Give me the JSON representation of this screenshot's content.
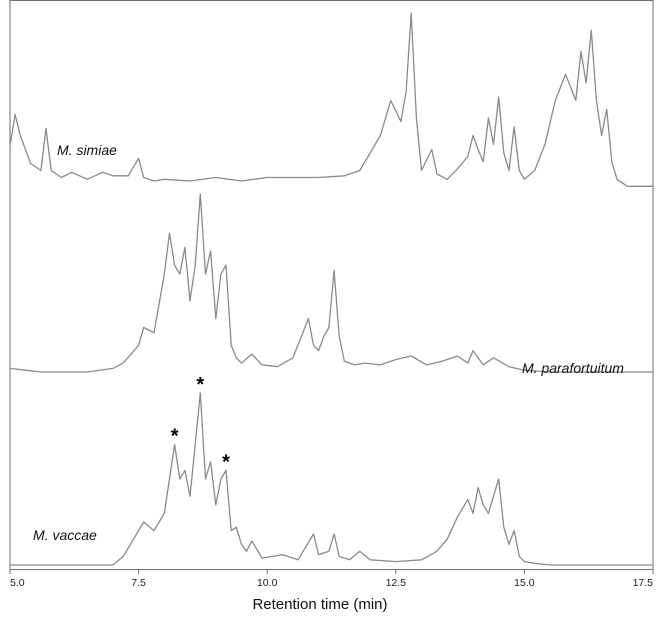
{
  "chart_data": {
    "type": "line",
    "xlabel": "Retention time (min)",
    "xlim": [
      5.0,
      17.5
    ],
    "x_ticks": [
      "5.0",
      "7.5",
      "10.0",
      "12.5",
      "15.0",
      "17.5"
    ],
    "series": [
      {
        "name": "M. simiae",
        "x": [
          5.0,
          5.1,
          5.2,
          5.4,
          5.6,
          5.7,
          5.8,
          6.0,
          6.2,
          6.5,
          6.8,
          7.0,
          7.3,
          7.5,
          7.6,
          7.8,
          8.0,
          8.5,
          9.0,
          9.5,
          10.0,
          10.5,
          11.0,
          11.5,
          11.8,
          12.0,
          12.2,
          12.4,
          12.6,
          12.7,
          12.8,
          12.9,
          13.0,
          13.2,
          13.3,
          13.5,
          13.7,
          13.9,
          14.0,
          14.1,
          14.2,
          14.3,
          14.4,
          14.5,
          14.6,
          14.7,
          14.8,
          14.9,
          15.0,
          15.2,
          15.4,
          15.6,
          15.8,
          16.0,
          16.1,
          16.2,
          16.3,
          16.4,
          16.5,
          16.6,
          16.7,
          16.8,
          17.0,
          17.5
        ],
        "y": [
          0.24,
          0.42,
          0.3,
          0.14,
          0.1,
          0.34,
          0.1,
          0.06,
          0.09,
          0.05,
          0.09,
          0.07,
          0.07,
          0.17,
          0.06,
          0.04,
          0.05,
          0.04,
          0.06,
          0.04,
          0.06,
          0.06,
          0.06,
          0.07,
          0.1,
          0.2,
          0.3,
          0.5,
          0.38,
          0.55,
          1.0,
          0.4,
          0.1,
          0.22,
          0.08,
          0.05,
          0.11,
          0.18,
          0.3,
          0.22,
          0.15,
          0.4,
          0.25,
          0.52,
          0.2,
          0.1,
          0.35,
          0.1,
          0.05,
          0.1,
          0.25,
          0.5,
          0.65,
          0.5,
          0.78,
          0.6,
          0.9,
          0.5,
          0.3,
          0.45,
          0.15,
          0.05,
          0.01,
          0.01
        ]
      },
      {
        "name": "M. parafortuitum",
        "x": [
          5.0,
          5.3,
          5.6,
          6.0,
          6.5,
          7.0,
          7.2,
          7.5,
          7.6,
          7.8,
          8.0,
          8.1,
          8.2,
          8.3,
          8.4,
          8.5,
          8.6,
          8.7,
          8.8,
          8.9,
          9.0,
          9.1,
          9.2,
          9.3,
          9.4,
          9.5,
          9.7,
          9.9,
          10.2,
          10.5,
          10.8,
          10.9,
          11.0,
          11.1,
          11.2,
          11.3,
          11.4,
          11.5,
          11.7,
          11.9,
          12.2,
          12.5,
          12.8,
          13.1,
          13.4,
          13.7,
          13.9,
          14.0,
          14.2,
          14.4,
          14.7,
          15.0,
          15.5,
          16.0,
          17.0,
          17.5
        ],
        "y": [
          0.02,
          0.01,
          0.0,
          0.0,
          0.0,
          0.02,
          0.05,
          0.15,
          0.25,
          0.22,
          0.55,
          0.78,
          0.6,
          0.55,
          0.7,
          0.4,
          0.6,
          1.0,
          0.55,
          0.68,
          0.3,
          0.55,
          0.6,
          0.15,
          0.08,
          0.05,
          0.1,
          0.04,
          0.03,
          0.08,
          0.3,
          0.15,
          0.12,
          0.2,
          0.25,
          0.57,
          0.2,
          0.06,
          0.04,
          0.05,
          0.04,
          0.07,
          0.09,
          0.04,
          0.06,
          0.09,
          0.05,
          0.12,
          0.04,
          0.08,
          0.03,
          0.01,
          0.0,
          0.0,
          0.0,
          0.0
        ]
      },
      {
        "name": "M. vaccae",
        "x": [
          5.0,
          6.0,
          7.0,
          7.2,
          7.4,
          7.6,
          7.8,
          8.0,
          8.2,
          8.3,
          8.4,
          8.5,
          8.6,
          8.7,
          8.8,
          8.9,
          9.0,
          9.1,
          9.2,
          9.3,
          9.4,
          9.5,
          9.6,
          9.7,
          9.9,
          10.3,
          10.6,
          10.9,
          11.0,
          11.2,
          11.3,
          11.4,
          11.6,
          11.8,
          12.0,
          12.5,
          13.0,
          13.3,
          13.5,
          13.7,
          13.9,
          14.0,
          14.1,
          14.2,
          14.3,
          14.4,
          14.5,
          14.6,
          14.7,
          14.8,
          14.9,
          15.0,
          15.2,
          15.5,
          16.0,
          17.5
        ],
        "y": [
          0.0,
          0.0,
          0.0,
          0.05,
          0.15,
          0.25,
          0.2,
          0.3,
          0.7,
          0.5,
          0.55,
          0.4,
          0.7,
          1.0,
          0.5,
          0.6,
          0.35,
          0.5,
          0.55,
          0.2,
          0.22,
          0.12,
          0.08,
          0.14,
          0.04,
          0.06,
          0.03,
          0.18,
          0.06,
          0.08,
          0.18,
          0.05,
          0.03,
          0.08,
          0.03,
          0.02,
          0.03,
          0.08,
          0.15,
          0.28,
          0.38,
          0.3,
          0.45,
          0.35,
          0.3,
          0.4,
          0.5,
          0.22,
          0.12,
          0.2,
          0.05,
          0.02,
          0.01,
          0.0,
          0.0,
          0.0
        ]
      }
    ],
    "annotations": [
      {
        "text": "*",
        "series": "M. vaccae",
        "x": 8.2
      },
      {
        "text": "*",
        "series": "M. vaccae",
        "x": 8.7
      },
      {
        "text": "*",
        "series": "M. vaccae",
        "x": 9.2
      }
    ],
    "grid": false
  }
}
